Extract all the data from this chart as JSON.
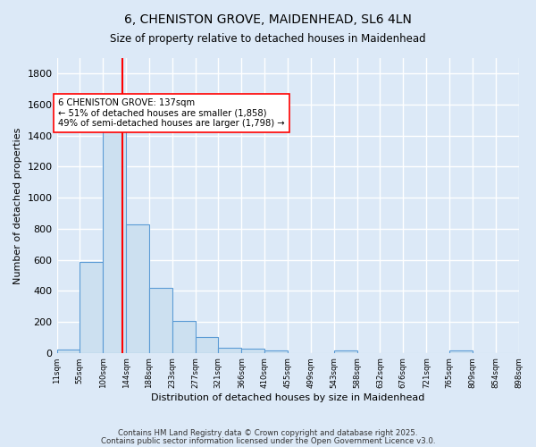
{
  "title1": "6, CHENISTON GROVE, MAIDENHEAD, SL6 4LN",
  "title2": "Size of property relative to detached houses in Maidenhead",
  "xlabel": "Distribution of detached houses by size in Maidenhead",
  "ylabel": "Number of detached properties",
  "bar_edges": [
    11,
    55,
    100,
    144,
    188,
    233,
    277,
    321,
    366,
    410,
    455,
    499,
    543,
    588,
    632,
    676,
    721,
    765,
    809,
    854,
    898
  ],
  "bar_heights": [
    20,
    585,
    1480,
    830,
    420,
    205,
    100,
    35,
    25,
    15,
    0,
    0,
    15,
    0,
    0,
    0,
    0,
    15,
    0,
    0
  ],
  "bar_color": "#cce0f0",
  "bar_edge_color": "#5b9bd5",
  "vline_x": 137,
  "vline_color": "red",
  "annotation_text": "6 CHENISTON GROVE: 137sqm\n← 51% of detached houses are smaller (1,858)\n49% of semi-detached houses are larger (1,798) →",
  "annotation_box_color": "white",
  "annotation_box_edgecolor": "red",
  "ylim": [
    0,
    1900
  ],
  "yticks": [
    0,
    200,
    400,
    600,
    800,
    1000,
    1200,
    1400,
    1600,
    1800
  ],
  "tick_labels": [
    "11sqm",
    "55sqm",
    "100sqm",
    "144sqm",
    "188sqm",
    "233sqm",
    "277sqm",
    "321sqm",
    "366sqm",
    "410sqm",
    "455sqm",
    "499sqm",
    "543sqm",
    "588sqm",
    "632sqm",
    "676sqm",
    "721sqm",
    "765sqm",
    "809sqm",
    "854sqm",
    "898sqm"
  ],
  "footer1": "Contains HM Land Registry data © Crown copyright and database right 2025.",
  "footer2": "Contains public sector information licensed under the Open Government Licence v3.0.",
  "bg_color": "#dce9f7",
  "grid_color": "white"
}
